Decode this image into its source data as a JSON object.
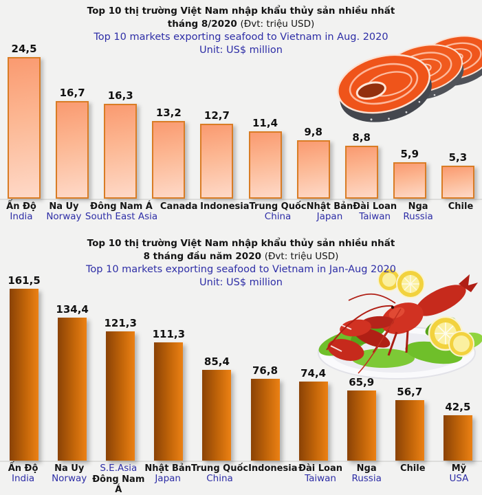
{
  "page": {
    "background": "#f2f2f1",
    "text_black": "#141414",
    "text_blue": "#2d2da6"
  },
  "chart_data": [
    {
      "type": "bar",
      "title_vi_line1": "Top 10 thị trường Việt Nam nhập khẩu thủy sản nhiều nhất",
      "title_vi_line2_bold": "tháng 8/2020",
      "title_vi_line2_note": "(Đvt: triệu USD)",
      "title_en_line1": "Top 10 markets exporting seafood to Vietnam in Aug. 2020",
      "title_en_line2": "Unit: US$ million",
      "unit": "US$ million",
      "grid": false,
      "legend": null,
      "ylim": [
        0,
        25
      ],
      "bar_style": {
        "fill_top": "#fa9a70",
        "fill_bottom": "#fed9c8",
        "border": "#d97c24"
      },
      "categories": [
        [
          {
            "t": "Ấn Độ",
            "lang": "vi"
          },
          {
            "t": "India",
            "lang": "en"
          }
        ],
        [
          {
            "t": "Na Uy",
            "lang": "vi"
          },
          {
            "t": "Norway",
            "lang": "en"
          }
        ],
        [
          {
            "t": "Đông Nam Á",
            "lang": "vi"
          },
          {
            "t": "South East Asia",
            "lang": "en"
          }
        ],
        [
          {
            "t": "Canada",
            "lang": "vi"
          }
        ],
        [
          {
            "t": "Indonesia",
            "lang": "vi"
          }
        ],
        [
          {
            "t": "Trung Quốc",
            "lang": "vi"
          },
          {
            "t": "China",
            "lang": "en"
          }
        ],
        [
          {
            "t": "Nhật Bản",
            "lang": "vi"
          },
          {
            "t": "Japan",
            "lang": "en"
          }
        ],
        [
          {
            "t": "Đài Loan",
            "lang": "vi"
          },
          {
            "t": "Taiwan",
            "lang": "en"
          }
        ],
        [
          {
            "t": "Nga",
            "lang": "vi"
          },
          {
            "t": "Russia",
            "lang": "en"
          }
        ],
        [
          {
            "t": "Chile",
            "lang": "vi"
          }
        ]
      ],
      "values": [
        24.5,
        16.7,
        16.3,
        13.2,
        12.7,
        11.4,
        9.8,
        8.8,
        5.9,
        5.3
      ],
      "value_labels": [
        "24,5",
        "16,7",
        "16,3",
        "13,2",
        "12,7",
        "11,4",
        "9,8",
        "8,8",
        "5,9",
        "5,3"
      ]
    },
    {
      "type": "bar",
      "title_vi_line1": "Top 10 thị trường Việt Nam nhập khẩu thủy sản nhiều nhất",
      "title_vi_line2_bold": "8 tháng đầu năm 2020",
      "title_vi_line2_note": "(Đvt: triệu USD)",
      "title_en_line1": "Top 10 markets exporting seafood to Vietnam in Jan-Aug 2020",
      "title_en_line2": "Unit: US$ million",
      "unit": "US$ million",
      "grid": false,
      "legend": null,
      "ylim": [
        0,
        170
      ],
      "bar_style": {
        "fill_left": "#8a4206",
        "fill_right": "#ec8114"
      },
      "categories": [
        [
          {
            "t": "Ấn Độ",
            "lang": "vi"
          },
          {
            "t": "India",
            "lang": "en"
          }
        ],
        [
          {
            "t": "Na Uy",
            "lang": "vi"
          },
          {
            "t": "Norway",
            "lang": "en"
          }
        ],
        [
          {
            "t": "S.E.Asia",
            "lang": "en"
          },
          {
            "t": "Đông Nam",
            "lang": "vi"
          },
          {
            "t": "Á",
            "lang": "vi"
          }
        ],
        [
          {
            "t": "Nhật Bản",
            "lang": "vi"
          },
          {
            "t": "Japan",
            "lang": "en"
          }
        ],
        [
          {
            "t": "Trung Quốc",
            "lang": "vi"
          },
          {
            "t": "China",
            "lang": "en"
          }
        ],
        [
          {
            "t": "Indonesia",
            "lang": "vi"
          }
        ],
        [
          {
            "t": "Đài Loan",
            "lang": "vi"
          },
          {
            "t": "Taiwan",
            "lang": "en"
          }
        ],
        [
          {
            "t": "Nga",
            "lang": "vi"
          },
          {
            "t": "Russia",
            "lang": "en"
          }
        ],
        [
          {
            "t": "Chile",
            "lang": "vi"
          }
        ],
        [
          {
            "t": "Mỹ",
            "lang": "vi"
          },
          {
            "t": "USA",
            "lang": "en"
          }
        ]
      ],
      "values": [
        161.5,
        134.4,
        121.3,
        111.3,
        85.4,
        76.8,
        74.4,
        65.9,
        56.7,
        42.5
      ],
      "value_labels": [
        "161,5",
        "134,4",
        "121,3",
        "111,3",
        "85,4",
        "76,8",
        "74,4",
        "65,9",
        "56,7",
        "42,5"
      ]
    }
  ]
}
